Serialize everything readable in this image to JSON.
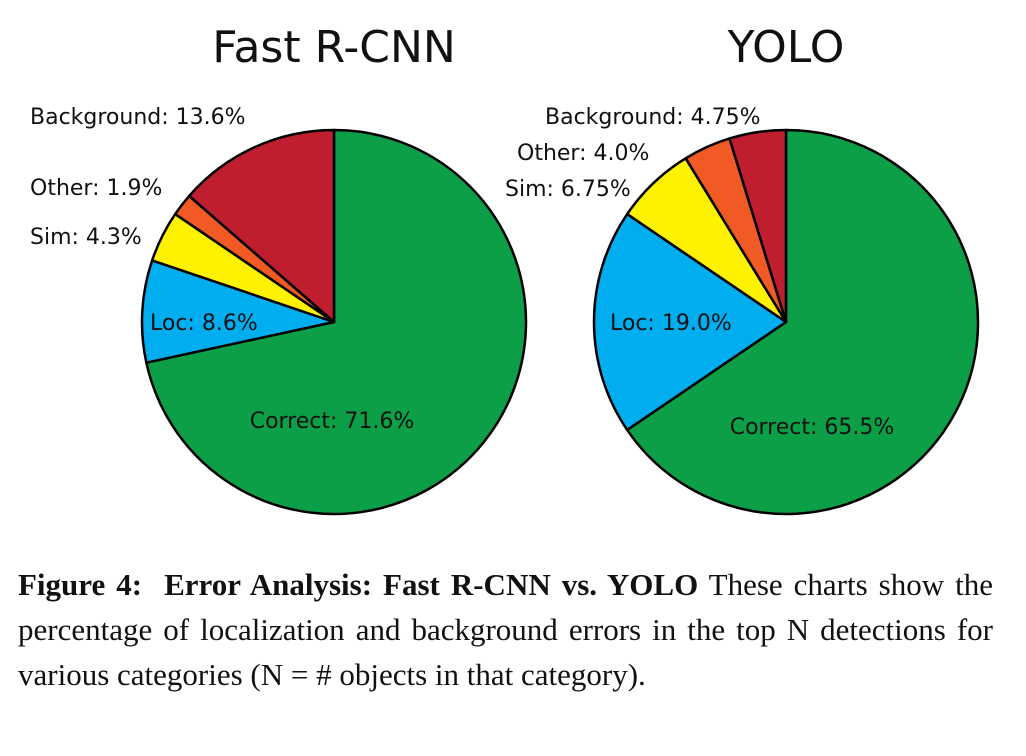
{
  "chart_data": [
    {
      "type": "pie",
      "title": "Fast R-CNN",
      "slices": [
        {
          "name": "Correct",
          "value": 71.6,
          "label": "Correct: 71.6%",
          "color": "#0c9f48"
        },
        {
          "name": "Loc",
          "value": 8.6,
          "label": "Loc: 8.6%",
          "color": "#00aeef"
        },
        {
          "name": "Sim",
          "value": 4.3,
          "label": "Sim: 4.3%",
          "color": "#fff200"
        },
        {
          "name": "Other",
          "value": 1.9,
          "label": "Other: 1.9%",
          "color": "#f15a24"
        },
        {
          "name": "Background",
          "value": 13.6,
          "label": "Background: 13.6%",
          "color": "#be1e2d"
        }
      ]
    },
    {
      "type": "pie",
      "title": "YOLO",
      "slices": [
        {
          "name": "Correct",
          "value": 65.5,
          "label": "Correct: 65.5%",
          "color": "#0c9f48"
        },
        {
          "name": "Loc",
          "value": 19.0,
          "label": "Loc: 19.0%",
          "color": "#00aeef"
        },
        {
          "name": "Sim",
          "value": 6.75,
          "label": "Sim: 6.75%",
          "color": "#fff200"
        },
        {
          "name": "Other",
          "value": 4.0,
          "label": "Other: 4.0%",
          "color": "#f15a24"
        },
        {
          "name": "Background",
          "value": 4.75,
          "label": "Background: 4.75%",
          "color": "#be1e2d"
        }
      ]
    }
  ],
  "caption": {
    "figure_label": "Figure 4:",
    "bold_title": "Error Analysis: Fast R-CNN vs. YOLO",
    "text": "These charts show the percentage of localization and background errors in the top N detections for various categories (N = # objects in that category)."
  }
}
